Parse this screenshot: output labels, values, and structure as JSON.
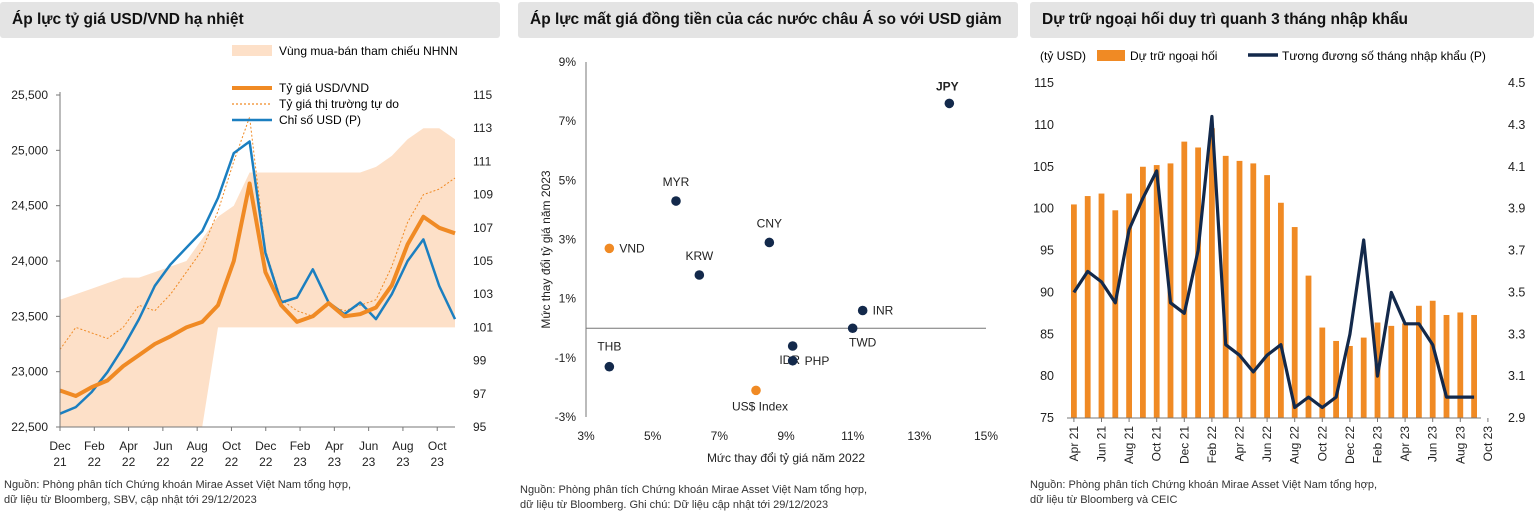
{
  "colors": {
    "orange": "#f08a24",
    "blue": "#1b7fc0",
    "navy": "#13294b",
    "band": "#fde0c8",
    "bar": "#f08a24"
  },
  "panel1": {
    "title": "Áp lực tỷ giá USD/VND hạ nhiệt",
    "band_label": "Vùng mua-bán tham chiếu NHNN",
    "legend": [
      "Tỷ giá USD/VND",
      "Tỷ giá thị trường tự do",
      "Chỉ số USD (P)"
    ],
    "source": [
      "Nguồn: Phòng phân tích Chứng khoán Mirae Asset Việt Nam tổng hợp,",
      "dữ liệu từ Bloomberg, SBV, cập nhật tới 29/12/2023"
    ]
  },
  "panel2": {
    "title": "Áp lực mất giá đồng tiền của các nước châu Á so với USD giảm",
    "source": [
      "Nguồn: Phòng phân tích Chứng khoán Mirae Asset Việt Nam tổng hợp,",
      "dữ liệu từ Bloomberg. Ghi chú: Dữ liệu cập nhật tới 29/12/2023"
    ]
  },
  "panel3": {
    "title": "Dự trữ ngoại hối duy trì quanh 3 tháng nhập khẩu",
    "unit_label": "(tỷ USD)",
    "legend": [
      "Dự trữ ngoại hối",
      "Tương đương số tháng nhập khẩu (P)"
    ],
    "source": [
      "Nguồn: Phòng phân tích Chứng khoán Mirae Asset Việt Nam tổng hợp,",
      "dữ liệu từ Bloomberg và CEIC"
    ]
  },
  "chart_data": [
    {
      "type": "line",
      "title": "Áp lực tỷ giá USD/VND hạ nhiệt",
      "x_ticks": [
        "Dec 21",
        "Feb 22",
        "Apr 22",
        "Jun 22",
        "Aug 22",
        "Oct 22",
        "Dec 22",
        "Feb 23",
        "Apr 23",
        "Jun 23",
        "Aug 23",
        "Oct 23"
      ],
      "y_left_ticks": [
        "22,500",
        "23,000",
        "23,500",
        "24,000",
        "24,500",
        "25,000",
        "25,500"
      ],
      "y_right_ticks": [
        "95",
        "97",
        "99",
        "101",
        "103",
        "105",
        "107",
        "109",
        "111",
        "113",
        "115"
      ],
      "ylim_left": [
        22500,
        25500
      ],
      "ylim_right": [
        95,
        115
      ],
      "x": [
        0,
        1,
        2,
        3,
        4,
        5,
        6,
        7,
        8,
        9,
        10,
        11,
        12,
        13,
        14,
        15,
        16,
        17,
        18,
        19,
        20,
        21,
        22,
        23,
        24,
        25
      ],
      "series": [
        {
          "name": "Tỷ giá USD/VND",
          "axis": "left",
          "values": [
            22830,
            22780,
            22860,
            22920,
            23050,
            23150,
            23250,
            23320,
            23400,
            23450,
            23600,
            24000,
            24700,
            23900,
            23600,
            23450,
            23500,
            23620,
            23500,
            23520,
            23580,
            23780,
            24150,
            24400,
            24300,
            24250
          ]
        },
        {
          "name": "Tỷ giá thị trường tự do",
          "axis": "left",
          "values": [
            23200,
            23400,
            23350,
            23300,
            23400,
            23600,
            23550,
            23700,
            23900,
            24100,
            24450,
            24900,
            25300,
            24100,
            23650,
            23550,
            23500,
            23600,
            23550,
            23600,
            23650,
            23950,
            24350,
            24600,
            24650,
            24750
          ]
        },
        {
          "name": "Chỉ số USD (P)",
          "axis": "right",
          "values": [
            95.8,
            96.2,
            97.1,
            98.3,
            99.8,
            101.5,
            103.5,
            104.8,
            105.8,
            106.8,
            108.8,
            111.5,
            112.2,
            105.5,
            102.5,
            102.8,
            104.5,
            102.5,
            101.8,
            102.5,
            101.5,
            103.0,
            105.0,
            106.3,
            103.5,
            101.5
          ]
        },
        {
          "name": "Vùng mua-bán tham chiếu NHNN",
          "axis": "left",
          "lower": [
            22500,
            22500,
            22500,
            22500,
            22500,
            22500,
            22500,
            22500,
            22500,
            22500,
            23400,
            23400,
            23400,
            23400,
            23400,
            23400,
            23400,
            23400,
            23400,
            23400,
            23400,
            23400,
            23400,
            23400,
            23400,
            23400
          ],
          "upper": [
            23650,
            23700,
            23750,
            23800,
            23850,
            23850,
            23900,
            23950,
            24000,
            24200,
            24400,
            24500,
            24800,
            24800,
            24800,
            24800,
            24800,
            24800,
            24800,
            24800,
            24850,
            24950,
            25100,
            25200,
            25200,
            25100
          ]
        }
      ]
    },
    {
      "type": "scatter",
      "title": "Áp lực mất giá đồng tiền của các nước châu Á so với USD giảm",
      "xlabel": "Mức thay đổi tỷ giá năm 2022",
      "ylabel": "Mức thay đổi tỷ giá năm 2023",
      "x_ticks": [
        "3%",
        "5%",
        "7%",
        "9%",
        "11%",
        "13%",
        "15%"
      ],
      "y_ticks": [
        "-3%",
        "-1%",
        "1%",
        "3%",
        "5%",
        "7%",
        "9%"
      ],
      "xlim": [
        3,
        15
      ],
      "ylim": [
        -3,
        9
      ],
      "points": [
        {
          "label": "JPY",
          "x": 13.9,
          "y": 7.6,
          "color": "navy",
          "bold": true
        },
        {
          "label": "MYR",
          "x": 5.7,
          "y": 4.3,
          "color": "navy"
        },
        {
          "label": "CNY",
          "x": 8.5,
          "y": 2.9,
          "color": "navy"
        },
        {
          "label": "VND",
          "x": 3.7,
          "y": 2.7,
          "color": "orange"
        },
        {
          "label": "KRW",
          "x": 6.4,
          "y": 1.8,
          "color": "navy"
        },
        {
          "label": "INR",
          "x": 11.3,
          "y": 0.6,
          "color": "navy"
        },
        {
          "label": "TWD",
          "x": 11.0,
          "y": 0.0,
          "color": "navy"
        },
        {
          "label": "IDR",
          "x": 9.2,
          "y": -0.6,
          "color": "navy"
        },
        {
          "label": "PHP",
          "x": 9.2,
          "y": -1.1,
          "color": "navy"
        },
        {
          "label": "THB",
          "x": 3.7,
          "y": -1.3,
          "color": "navy"
        },
        {
          "label": "US$ Index",
          "x": 8.1,
          "y": -2.1,
          "color": "orange"
        }
      ]
    },
    {
      "type": "bar",
      "title": "Dự trữ ngoại hối duy trì quanh 3 tháng nhập khẩu",
      "x_ticks": [
        "Apr 21",
        "Jun 21",
        "Aug 21",
        "Oct 21",
        "Dec 21",
        "Feb 22",
        "Apr 22",
        "Jun 22",
        "Aug 22",
        "Oct 22",
        "Dec 22",
        "Feb 23",
        "Apr 23",
        "Jun 23",
        "Aug 23",
        "Oct 23"
      ],
      "y_left_ticks": [
        "75",
        "80",
        "85",
        "90",
        "95",
        "100",
        "105",
        "110",
        "115"
      ],
      "y_right_ticks": [
        "2.9",
        "3.1",
        "3.3",
        "3.5",
        "3.7",
        "3.9",
        "4.1",
        "4.3",
        "4.5"
      ],
      "ylim_left": [
        75,
        115
      ],
      "ylim_right": [
        2.9,
        4.5
      ],
      "categories": [
        "Apr 21",
        "May 21",
        "Jun 21",
        "Jul 21",
        "Aug 21",
        "Sep 21",
        "Oct 21",
        "Nov 21",
        "Dec 21",
        "Jan 22",
        "Feb 22",
        "Mar 22",
        "Apr 22",
        "May 22",
        "Jun 22",
        "Jul 22",
        "Aug 22",
        "Sep 22",
        "Oct 22",
        "Nov 22",
        "Dec 22",
        "Jan 23",
        "Feb 23",
        "Mar 23",
        "Apr 23",
        "May 23",
        "Jun 23",
        "Jul 23",
        "Aug 23",
        "Sep 23"
      ],
      "series": [
        {
          "name": "Dự trữ ngoại hối",
          "axis": "left",
          "values": [
            100.5,
            101.5,
            101.8,
            99.8,
            101.8,
            105.0,
            105.2,
            105.4,
            108.0,
            107.3,
            109.6,
            106.3,
            105.7,
            105.4,
            104.0,
            100.7,
            97.8,
            92.0,
            85.8,
            84.2,
            83.6,
            84.6,
            86.4,
            86.0,
            86.3,
            88.4,
            89.0,
            87.3,
            87.6,
            87.3
          ]
        },
        {
          "name": "Tương đương số tháng nhập khẩu (P)",
          "axis": "right",
          "values": [
            3.5,
            3.6,
            3.55,
            3.45,
            3.8,
            3.95,
            4.08,
            3.45,
            3.4,
            3.7,
            4.34,
            3.25,
            3.2,
            3.12,
            3.2,
            3.25,
            2.95,
            3.0,
            2.95,
            3.0,
            3.3,
            3.75,
            3.1,
            3.5,
            3.35,
            3.35,
            3.25,
            3.0,
            3.0,
            3.0
          ]
        }
      ]
    }
  ]
}
